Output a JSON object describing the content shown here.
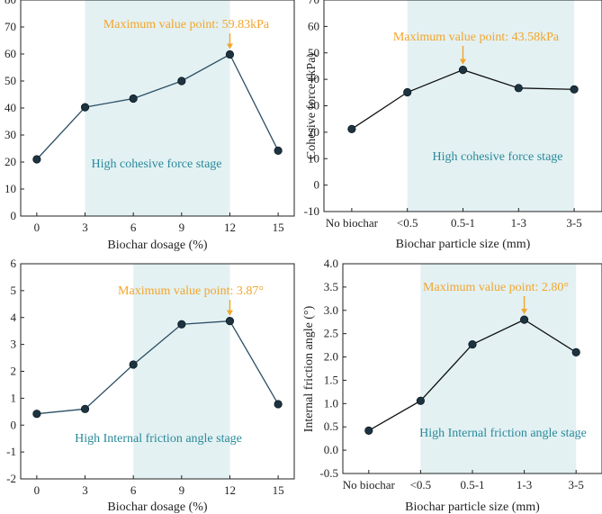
{
  "colors": {
    "shade": "#e3f1f3",
    "annotation": "#f3a52a",
    "stage_text": "#2a8a99",
    "line_left": "#2c4f63",
    "line_right": "#111111"
  },
  "chart_data": [
    {
      "type": "line",
      "x": [
        0,
        3,
        6,
        9,
        12,
        15
      ],
      "values": [
        21.0,
        40.3,
        43.5,
        50.0,
        59.83,
        24.2
      ],
      "xticks": [
        "0",
        "3",
        "6",
        "9",
        "12",
        "15"
      ],
      "xlim": [
        -1,
        16
      ],
      "ylim": [
        0,
        80
      ],
      "yticks": [
        "0",
        "10",
        "20",
        "30",
        "40",
        "50",
        "60",
        "70",
        "80"
      ],
      "xlabel": "Biochar dosage (%)",
      "ylabel": "",
      "shaded_range": [
        3,
        12
      ],
      "annotation": "Maximum value point: 59.83kPa",
      "stage_label": "High cohesive force stage",
      "max_index": 4
    },
    {
      "type": "line",
      "categories": [
        "No biochar",
        "<0.5",
        "0.5-1",
        "1-3",
        "3-5"
      ],
      "values": [
        21.2,
        35.1,
        43.58,
        36.7,
        36.2
      ],
      "ylim": [
        -10,
        70
      ],
      "yticks": [
        "-10",
        "0",
        "10",
        "20",
        "30",
        "40",
        "50",
        "60",
        "70"
      ],
      "xlabel": "Biochar particle size (mm)",
      "ylabel": "Cohesive force (kPa)",
      "shaded_categories": [
        "<0.5",
        "3-5"
      ],
      "annotation": "Maximum value point: 43.58kPa",
      "stage_label": "High cohesive force stage",
      "max_index": 2
    },
    {
      "type": "line",
      "x": [
        0,
        3,
        6,
        9,
        12,
        15
      ],
      "values": [
        0.42,
        0.6,
        2.25,
        3.75,
        3.87,
        0.78
      ],
      "xticks": [
        "0",
        "3",
        "6",
        "9",
        "12",
        "15"
      ],
      "xlim": [
        -1,
        16
      ],
      "ylim": [
        -2,
        6
      ],
      "yticks": [
        "-2",
        "-1",
        "0",
        "1",
        "2",
        "3",
        "4",
        "5",
        "6"
      ],
      "xlabel": "Biochar dosage (%)",
      "ylabel": "",
      "shaded_range": [
        6,
        12
      ],
      "annotation": "Maximum value point: 3.87°",
      "stage_label": "High Internal friction angle stage",
      "max_index": 4
    },
    {
      "type": "line",
      "categories": [
        "No biochar",
        "<0.5",
        "0.5-1",
        "1-3",
        "3-5"
      ],
      "values": [
        0.42,
        1.06,
        2.27,
        2.8,
        2.1
      ],
      "ylim": [
        -0.5,
        4.0
      ],
      "yticks": [
        "-0.5",
        "0.0",
        "0.5",
        "1.0",
        "1.5",
        "2.0",
        "2.5",
        "3.0",
        "3.5",
        "4.0"
      ],
      "xlabel": "Biochar particle size (mm)",
      "ylabel": "Internal friction angle (°)",
      "shaded_categories": [
        "<0.5",
        "3-5"
      ],
      "annotation": "Maximum value point: 2.80°",
      "stage_label": "High Internal friction angle stage",
      "max_index": 3
    }
  ]
}
